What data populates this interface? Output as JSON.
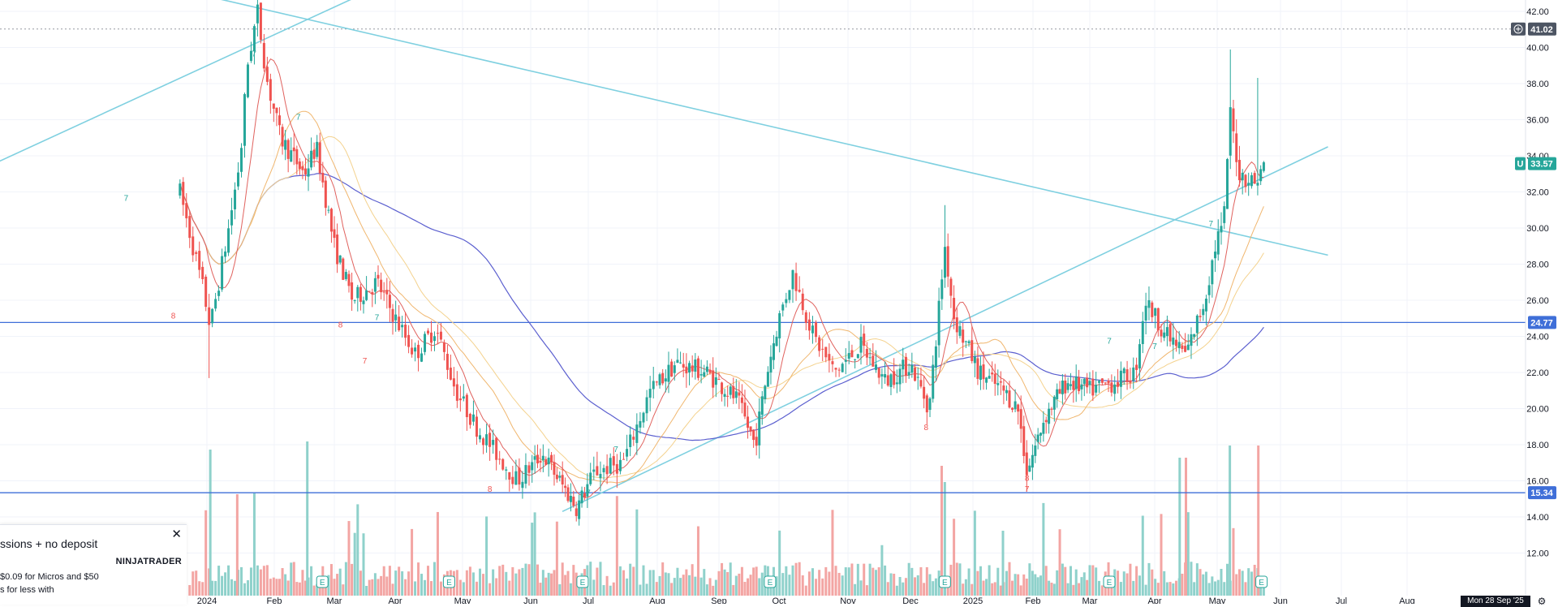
{
  "price_axis": {
    "ticks": [
      "42.00",
      "40.00",
      "38.00",
      "36.00",
      "34.00",
      "32.00",
      "30.00",
      "28.00",
      "26.00",
      "24.00",
      "22.00",
      "20.00",
      "18.00",
      "16.00",
      "14.00",
      "12.00"
    ]
  },
  "time_axis": {
    "months": [
      "2024",
      "Feb",
      "Mar",
      "Apr",
      "May",
      "Jun",
      "Jul",
      "Aug",
      "Sep",
      "Oct",
      "Nov",
      "Dec",
      "2025",
      "Feb",
      "Mar",
      "Apr",
      "May",
      "Jun",
      "Jul",
      "Aug"
    ]
  },
  "price_tags": {
    "crosshair": "41.02",
    "last_price": "33.57",
    "last_price_marker": "U",
    "level_upper": "24.77",
    "level_lower": "15.34"
  },
  "horizontal_levels": [
    {
      "price": 24.77,
      "color": "#3f6fd8"
    },
    {
      "price": 15.34,
      "color": "#3f6fd8"
    }
  ],
  "colors": {
    "up": "#26a69a",
    "down": "#ef5350",
    "volume_up": "#8fd1cb",
    "volume_down": "#f3a5a3",
    "ma_fast": "#e0625e",
    "ma_mid": "#f0b66e",
    "ma_slow_light": "#f4d28e",
    "ma_long": "#5b5fcf",
    "trendline": "#7fd0e0",
    "level": "#3f6fd8",
    "crosshair_tag": "#4d5563",
    "last_tag": "#26a69a"
  },
  "earnings_markers": {
    "label": "E"
  },
  "ad": {
    "title": "ssions + no deposit",
    "brand": "NINJATRADER",
    "line1": "$0.09 for Micros and $50",
    "line2": "s for less with",
    "close": "✕"
  },
  "date_range": "Mon 28 Sep '25",
  "settings_icon": "⚙",
  "chart_data": {
    "type": "candlestick",
    "price_range": [
      11,
      43
    ],
    "months": [
      "2024",
      "Feb",
      "Mar",
      "Apr",
      "May",
      "Jun",
      "Jul",
      "Aug",
      "Sep",
      "Oct",
      "Nov",
      "Dec",
      "2025",
      "Feb",
      "Mar",
      "Apr",
      "May",
      "Jun",
      "Jul",
      "Aug"
    ],
    "horizontal_levels": [
      24.77,
      15.34
    ],
    "last_price": 33.57,
    "crosshair_price": 41.02,
    "price_anchors": [
      {
        "month": -0.4,
        "price": 32
      },
      {
        "month": -0.05,
        "price": 26.5
      },
      {
        "month": 0.05,
        "price": 24.5
      },
      {
        "month": 0.3,
        "price": 29.5
      },
      {
        "month": 0.5,
        "price": 34
      },
      {
        "month": 0.6,
        "price": 39
      },
      {
        "month": 0.75,
        "price": 42
      },
      {
        "month": 0.9,
        "price": 38
      },
      {
        "month": 1.1,
        "price": 35
      },
      {
        "month": 1.5,
        "price": 33
      },
      {
        "month": 1.7,
        "price": 34.5
      },
      {
        "month": 2.0,
        "price": 29
      },
      {
        "month": 2.3,
        "price": 26
      },
      {
        "month": 2.7,
        "price": 27
      },
      {
        "month": 3.0,
        "price": 25
      },
      {
        "month": 3.3,
        "price": 23
      },
      {
        "month": 3.6,
        "price": 24.5
      },
      {
        "month": 3.9,
        "price": 21
      },
      {
        "month": 4.2,
        "price": 19
      },
      {
        "month": 4.5,
        "price": 17.5
      },
      {
        "month": 4.8,
        "price": 16
      },
      {
        "month": 5.2,
        "price": 17.5
      },
      {
        "month": 5.5,
        "price": 16
      },
      {
        "month": 5.8,
        "price": 14.5
      },
      {
        "month": 6.1,
        "price": 16.5
      },
      {
        "month": 6.5,
        "price": 17
      },
      {
        "month": 6.9,
        "price": 21
      },
      {
        "month": 7.3,
        "price": 22.5
      },
      {
        "month": 7.8,
        "price": 22
      },
      {
        "month": 8.3,
        "price": 20.5
      },
      {
        "month": 8.6,
        "price": 18
      },
      {
        "month": 8.8,
        "price": 22
      },
      {
        "month": 9.0,
        "price": 25
      },
      {
        "month": 9.2,
        "price": 27.5
      },
      {
        "month": 9.5,
        "price": 24
      },
      {
        "month": 9.8,
        "price": 22
      },
      {
        "month": 10.2,
        "price": 23.5
      },
      {
        "month": 10.6,
        "price": 21.5
      },
      {
        "month": 11.0,
        "price": 22.5
      },
      {
        "month": 11.3,
        "price": 20
      },
      {
        "month": 11.55,
        "price": 29
      },
      {
        "month": 11.7,
        "price": 25
      },
      {
        "month": 12.1,
        "price": 22
      },
      {
        "month": 12.5,
        "price": 21
      },
      {
        "month": 12.75,
        "price": 20
      },
      {
        "month": 12.9,
        "price": 16.5
      },
      {
        "month": 13.2,
        "price": 19.5
      },
      {
        "month": 13.6,
        "price": 21.5
      },
      {
        "month": 14.0,
        "price": 21
      },
      {
        "month": 14.4,
        "price": 21.5
      },
      {
        "month": 14.7,
        "price": 22
      },
      {
        "month": 14.85,
        "price": 26
      },
      {
        "month": 15.2,
        "price": 24
      },
      {
        "month": 15.5,
        "price": 23
      },
      {
        "month": 15.8,
        "price": 26
      },
      {
        "month": 16.0,
        "price": 29.5
      },
      {
        "month": 16.1,
        "price": 30
      },
      {
        "month": 16.2,
        "price": 36.5
      },
      {
        "month": 16.35,
        "price": 33
      },
      {
        "month": 16.6,
        "price": 32.5
      },
      {
        "month": 16.75,
        "price": 33.57
      }
    ]
  }
}
